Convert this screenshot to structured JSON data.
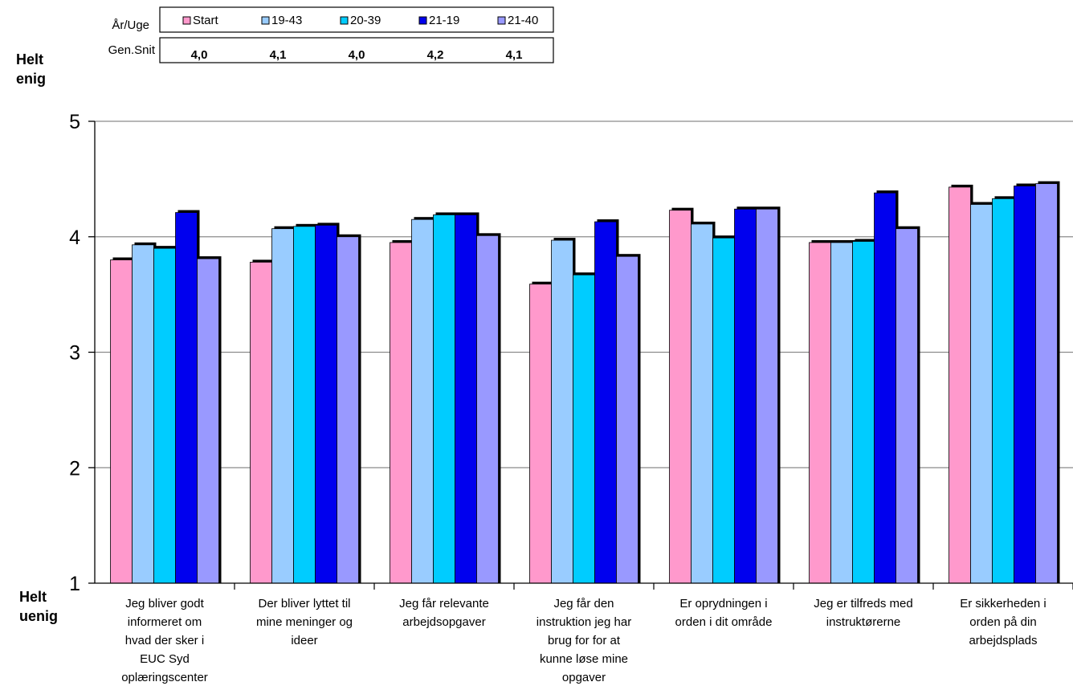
{
  "chart_data": {
    "type": "bar",
    "title": "",
    "xlabel": "",
    "ylabel": "",
    "ylim": [
      1,
      5
    ],
    "yticks": [
      1,
      2,
      3,
      4,
      5
    ],
    "grid": true,
    "legend_placement": "top-left",
    "y_top_label": [
      "Helt",
      "enig"
    ],
    "y_bottom_label": [
      "Helt",
      "uenig"
    ],
    "legend_header": "År/Uge",
    "average_header": "Gen.Snit",
    "categories": [
      [
        "Jeg bliver godt",
        "informeret om",
        "hvad der sker i",
        "EUC Syd",
        "oplæringscenter"
      ],
      [
        "Der bliver lyttet til",
        "mine meninger og",
        "ideer"
      ],
      [
        "Jeg får relevante",
        "arbejdsopgaver"
      ],
      [
        "Jeg får den",
        "instruktion jeg har",
        "brug for for at",
        "kunne løse mine",
        "opgaver"
      ],
      [
        "Er oprydningen i",
        "orden i dit område"
      ],
      [
        "Jeg er tilfreds med",
        "instruktørerne"
      ],
      [
        "Er sikkerheden i",
        "orden på din",
        "arbejdsplads"
      ]
    ],
    "series": [
      {
        "name": "Start",
        "color": "#ff99cc",
        "average": "4,0",
        "values": [
          3.8,
          3.78,
          3.95,
          3.59,
          4.23,
          3.95,
          4.43
        ]
      },
      {
        "name": "19-43",
        "color": "#99ccff",
        "average": "4,1",
        "values": [
          3.93,
          4.07,
          4.15,
          3.97,
          4.11,
          3.95,
          4.28
        ]
      },
      {
        "name": "20-39",
        "color": "#00ccff",
        "average": "4,0",
        "values": [
          3.9,
          4.09,
          4.19,
          3.67,
          3.99,
          3.96,
          4.33
        ]
      },
      {
        "name": "21-19",
        "color": "#0000ee",
        "average": "4,2",
        "values": [
          4.21,
          4.1,
          4.19,
          4.13,
          4.24,
          4.38,
          4.44
        ]
      },
      {
        "name": "21-40",
        "color": "#9999ff",
        "average": "4,1",
        "values": [
          3.81,
          4.0,
          4.01,
          3.83,
          4.24,
          4.07,
          4.46
        ]
      }
    ]
  }
}
